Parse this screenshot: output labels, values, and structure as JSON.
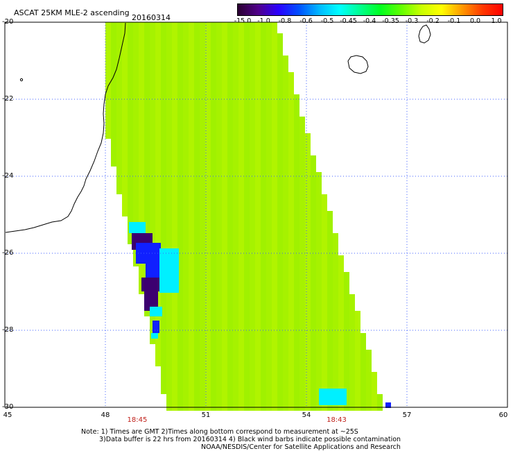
{
  "header": {
    "title": "ASCAT 25KM MLE-2 ascending",
    "date": "20160314"
  },
  "colorbar": {
    "labels": [
      "-15.0",
      "-1.0",
      "-0.8",
      "-0.6",
      "-0.5",
      "-0.45",
      "-0.4",
      "-0.35",
      "-0.3",
      "-0.2",
      "-0.1",
      "0.0",
      "1.0"
    ],
    "colors": [
      "#2a0030",
      "#50008a",
      "#2a00ff",
      "#0050ff",
      "#00b8ff",
      "#00ffff",
      "#00ff90",
      "#00ff20",
      "#60ff00",
      "#c8ff00",
      "#ffff00",
      "#ff9a00",
      "#ff3a00",
      "#ff0000"
    ]
  },
  "axes": {
    "y_labels": [
      "-20",
      "-22",
      "-24",
      "-26",
      "-28",
      "-30"
    ],
    "x_labels": [
      "45",
      "48",
      "51",
      "54",
      "57",
      "60"
    ],
    "lat_range": [
      -30,
      -20
    ],
    "lon_range": [
      45,
      60
    ]
  },
  "times": [
    {
      "label": "18:45",
      "lon": 48.95
    },
    {
      "label": "18:43",
      "lon": 54.9
    }
  ],
  "notes": {
    "line1": "Note: 1) Times are GMT 2)Times along bottom correspond to measurement at ~25S",
    "line2": "3)Data buffer is 22 hrs from 20160314 4) Black wind barbs indicate possible contamination",
    "line3": "NOAA/NESDIS/Center for Satellite Applications and Research"
  },
  "colors": {
    "swath_green": "#a8f500",
    "swath_bright": "#6cf000",
    "low_cyan": "#00f0ff",
    "low_blue": "#1020ff",
    "low_dark": "#3c0070",
    "coast": "#000000",
    "grid": "#4060ff"
  }
}
